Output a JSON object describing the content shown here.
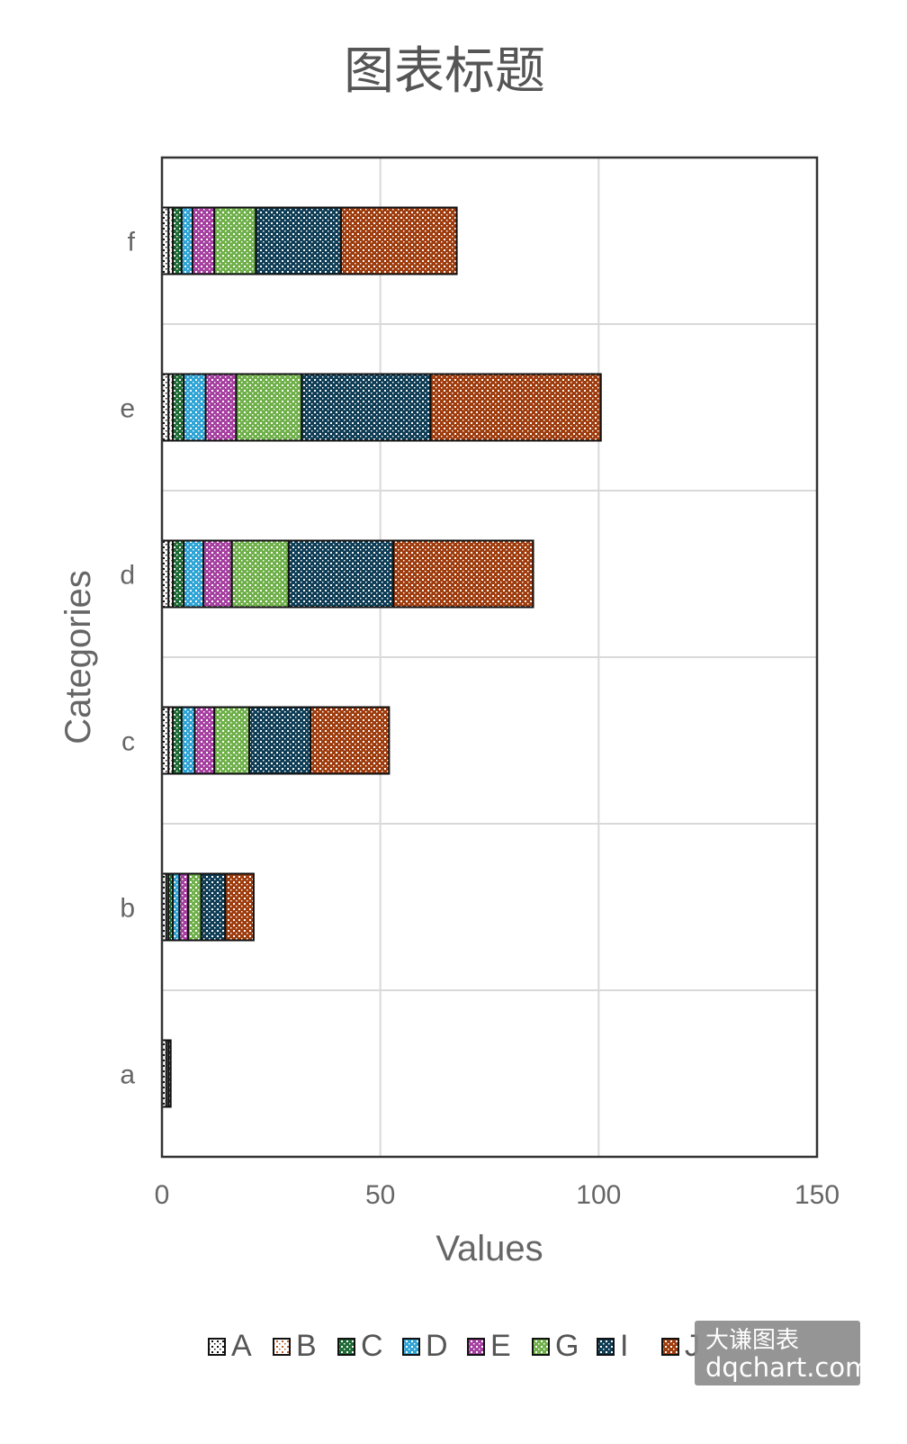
{
  "chart_data": {
    "type": "bar",
    "orientation": "horizontal",
    "stacked": true,
    "title": "图表标题",
    "xlabel": "Values",
    "ylabel": "Categories",
    "xlim": [
      0,
      150
    ],
    "x_ticks": [
      0,
      50,
      100,
      150
    ],
    "grid": true,
    "legend_position": "bottom",
    "categories": [
      "a",
      "b",
      "c",
      "d",
      "e",
      "f"
    ],
    "series": [
      {
        "name": "A",
        "color": "#ffffff",
        "values": [
          1,
          1,
          1.5,
          1.5,
          1.5,
          1.5
        ]
      },
      {
        "name": "B",
        "color": "#ffffff",
        "values": [
          0.5,
          0.5,
          1,
          1,
          1,
          1
        ]
      },
      {
        "name": "C",
        "color": "#1f6b35",
        "values": [
          0.5,
          1,
          2,
          2.5,
          2.5,
          2
        ]
      },
      {
        "name": "D",
        "color": "#2fa4d6",
        "values": [
          0,
          1.5,
          3,
          4.5,
          5,
          2.5
        ]
      },
      {
        "name": "E",
        "color": "#a640a0",
        "values": [
          0,
          2,
          4.5,
          6.5,
          7,
          5
        ]
      },
      {
        "name": "G",
        "color": "#6fb04a",
        "values": [
          0,
          3,
          8,
          13,
          15,
          9.5
        ]
      },
      {
        "name": "I",
        "color": "#0f3d55",
        "values": [
          0,
          5.5,
          14,
          24,
          29.5,
          19.5
        ]
      },
      {
        "name": "J",
        "color": "#9e3c0e",
        "values": [
          0,
          6.5,
          18,
          32,
          39,
          26.5
        ]
      }
    ]
  },
  "watermark": {
    "line1": "大谦图表",
    "line2": "dqchart.com"
  }
}
